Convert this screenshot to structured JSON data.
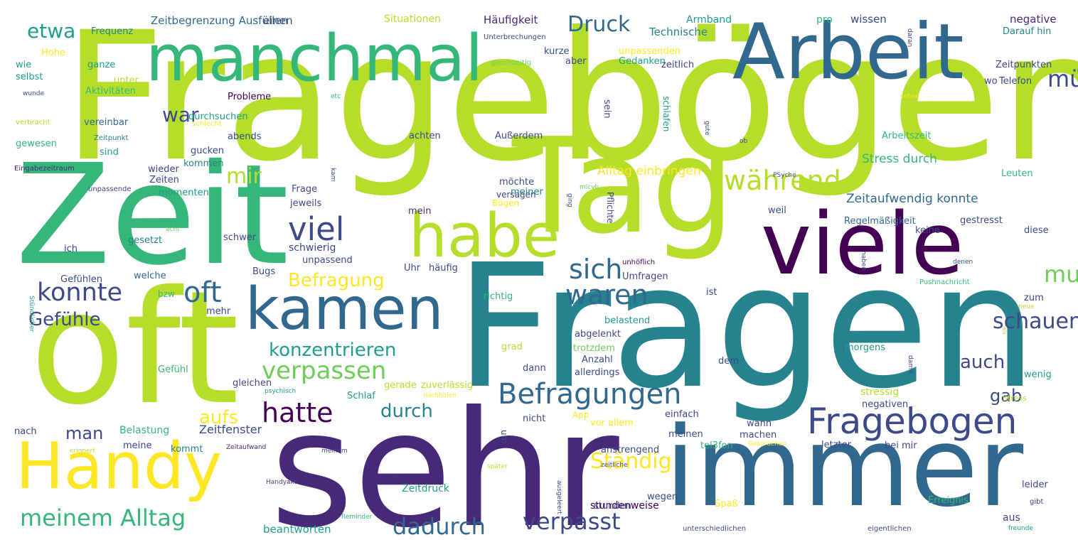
{
  "palette": [
    "#fde725",
    "#b5de2b",
    "#6ece58",
    "#35b779",
    "#1f9e89",
    "#26828e",
    "#31688e",
    "#3e4989",
    "#482878",
    "#440154"
  ],
  "words": [
    "Fragebögen",
    "Fragen",
    "sehr",
    "oft",
    "Zeit",
    "Tag",
    "immer",
    "Arbeit",
    "manchmal",
    "Handy",
    "viele",
    "habe",
    "kamen",
    "Fragebogen",
    "Befragungen",
    "während",
    "viel",
    "konnte",
    "oft",
    "sich",
    "Druck",
    "etwa",
    "hatte",
    "verpassen",
    "konzentrieren",
    "Befragung",
    "Gefühle",
    "meinem Alltag",
    "dadurch",
    "verpasst",
    "durch",
    "Ständig",
    "schauen",
    "musste",
    "müssen",
    "waren",
    "auch",
    "gab",
    "Zeitaufwendig konnte",
    "Alltag einbringen",
    "Stress durch",
    "mir",
    "war",
    "aufs",
    "man",
    "Zeitfenster",
    "Belastung",
    "Zeitdruck",
    "beantworten",
    "stundenweise",
    "Häufigkeit",
    "Technische",
    "Zeitbegrenzung Ausfüllen",
    "einen",
    "Situationen",
    "Armband",
    "pro",
    "wissen",
    "negative",
    "Frequenz",
    "Unterbrechungen",
    "Darauf hin",
    "Hohe",
    "ganze",
    "Gedanken",
    "unpassenden",
    "Zeitpunkten",
    "wie",
    "selbst",
    "gleichzeitig",
    "zeitlich",
    "kurze",
    "aber",
    "Telefon",
    "wo",
    "unter",
    "Aktivitäten",
    "Probleme",
    "etc",
    "sehen",
    "verbracht",
    "vereinbar",
    "schlecht",
    "Zeitpunkt",
    "gewesen",
    "sind",
    "durchsuchen",
    "abends",
    "gucken",
    "kommen",
    "achten",
    "Außerdem",
    "Arbeitszeit",
    "Eingabezeitraum",
    "unpassende",
    "Zeiten",
    "wieder",
    "momenten",
    "Frage",
    "jeweils",
    "möchte",
    "versagen",
    "meiner",
    "Bögen",
    "mein",
    "Regelmäßigkeit",
    "weil",
    "gestresst",
    "keine",
    "diese",
    "gesetzt",
    "ich",
    "schwer",
    "schwierig",
    "unpassend",
    "Gefühlen",
    "welche",
    "Bugs",
    "Uhr",
    "häufig",
    "Umfragen",
    "unhöflich",
    "Pushnachricht",
    "richtig",
    "mehr",
    "belastend",
    "abgelenkt",
    "grad",
    "trotzdem",
    "Anzahl",
    "allerdings",
    "dem",
    "morgens",
    "zum",
    "neue",
    "Gefühl",
    "gleichen",
    "psychisch",
    "gerade",
    "zuverlässig",
    "Schlaf",
    "nachholen",
    "stressig",
    "negativen",
    "Stress",
    "wenig",
    "nach",
    "meine",
    "kommt",
    "Zeitaufwand",
    "meinem",
    "nicht",
    "App",
    "vor allem",
    "meinen",
    "machen",
    "wann",
    "tel3fon",
    "letzter",
    "bei mir",
    "Gesprächen",
    "erinnert",
    "Handyaku",
    "später",
    "zeitliche",
    "anstrengend",
    "wegen",
    "stunden",
    "Spaß",
    "Erreignis",
    "aus",
    "gibt",
    "freunde",
    "unterschiedlichen",
    "eigentlichen",
    "Reminder",
    "ausgeleert",
    "leider",
    "einfach",
    "damit",
    "als",
    "ist",
    "haben",
    "denen",
    "Stündlicher",
    "bzw",
    "acht",
    "kam",
    "Pflichte",
    "ging",
    "micvh",
    "PSyche",
    "Leuten",
    "ob",
    "gute",
    "schlafen",
    "sein",
    "daran",
    "wunde",
    "um",
    "dann"
  ]
}
